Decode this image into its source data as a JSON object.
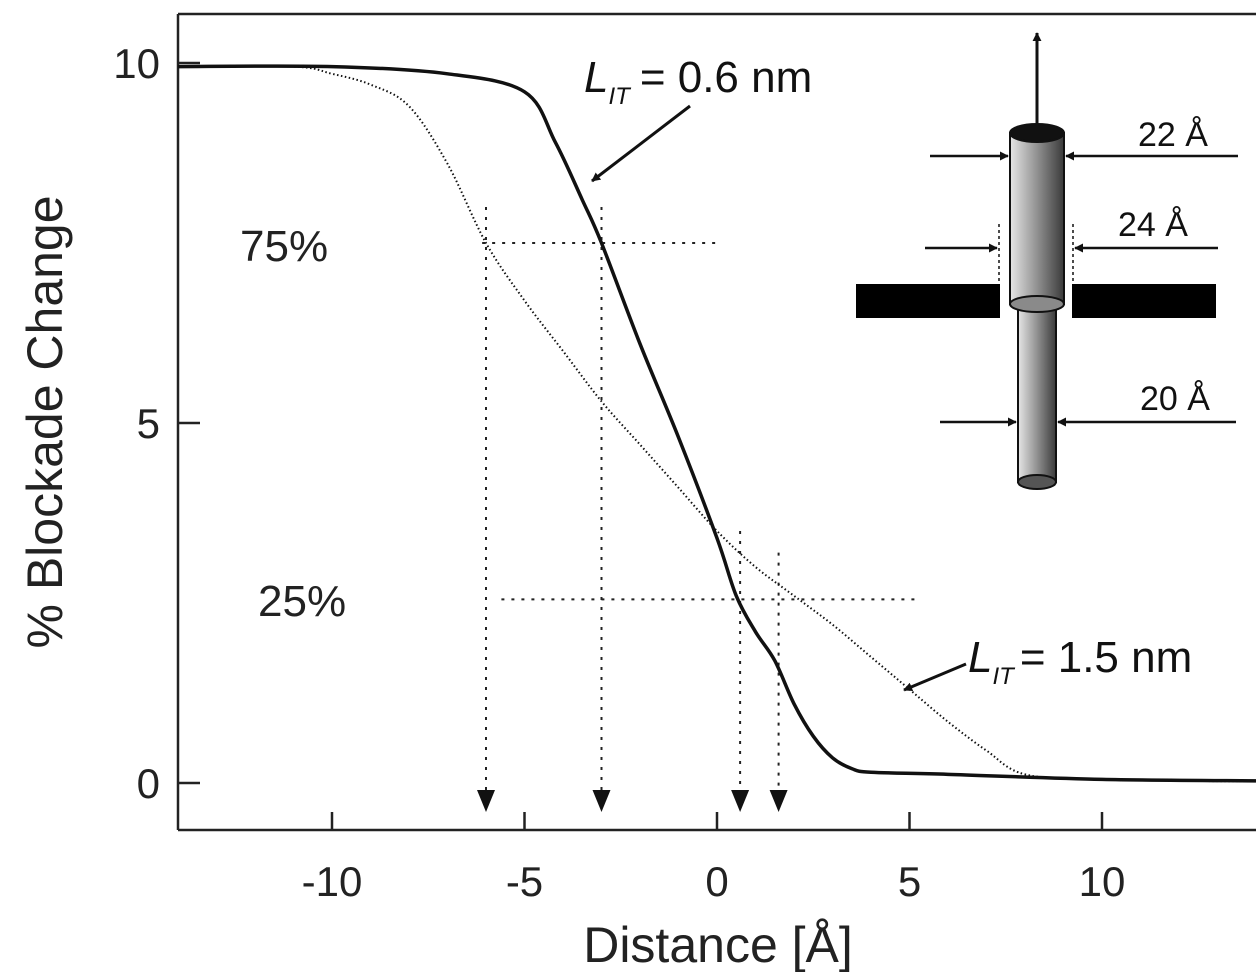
{
  "chart_data": {
    "type": "line",
    "xlabel": "Distance [Å]",
    "ylabel": "% Blockade Change",
    "xlim": [
      -14,
      14
    ],
    "ylim": [
      -0.65,
      10.7
    ],
    "x_ticks": [
      -10,
      -5,
      0,
      5,
      10
    ],
    "x_tick_labels": [
      "-10",
      "-5",
      "0",
      "5",
      "10"
    ],
    "y_ticks": [
      0,
      5,
      10
    ],
    "y_tick_labels": [
      "0",
      "5",
      "10"
    ],
    "grid": false,
    "series": [
      {
        "style": "solid",
        "x": [
          -14,
          -10,
          -7,
          -5,
          -4.2,
          -3.5,
          -3,
          -2,
          -1,
          0,
          0.5,
          1,
          1.5,
          2,
          2.5,
          3,
          3.5,
          4,
          6,
          10,
          14
        ],
        "y": [
          9.95,
          9.95,
          9.85,
          9.6,
          8.9,
          8.1,
          7.5,
          6.1,
          4.8,
          3.4,
          2.6,
          2.1,
          1.7,
          1.1,
          0.65,
          0.35,
          0.2,
          0.15,
          0.12,
          0.05,
          0.03
        ]
      },
      {
        "style": "dotted",
        "x": [
          -14,
          -11,
          -10,
          -9,
          -8,
          -7,
          -6,
          -5,
          -4,
          -3,
          -2,
          -1,
          0,
          1,
          2,
          3,
          4,
          5,
          6,
          7,
          8,
          10,
          14
        ],
        "y": [
          9.95,
          9.95,
          9.85,
          9.7,
          9.4,
          8.6,
          7.5,
          6.7,
          6.0,
          5.3,
          4.7,
          4.1,
          3.5,
          3.0,
          2.6,
          2.2,
          1.75,
          1.3,
          0.85,
          0.45,
          0.12,
          0.05,
          0.02
        ]
      }
    ],
    "reference_lines": {
      "horizontal": [
        {
          "label": "75%",
          "y": 7.5,
          "x_range": [
            -6.1,
            0
          ]
        },
        {
          "label": "25%",
          "y": 2.55,
          "x_range": [
            -5.6,
            5.2
          ]
        }
      ],
      "vertical_arrows": [
        {
          "x": -6.0,
          "from_y": 8.0
        },
        {
          "x": -3.0,
          "from_y": 8.0
        },
        {
          "x": 0.6,
          "from_y": 3.5
        },
        {
          "x": 1.6,
          "from_y": 3.2
        }
      ]
    },
    "annotations": [
      {
        "main": "L",
        "sub": "IT",
        "value": "= 0.6 nm"
      },
      {
        "main": "L",
        "sub": "IT",
        "value": "= 1.5 nm"
      }
    ],
    "inset": {
      "dimensions": [
        "22 Å",
        "24 Å",
        "20 Å"
      ]
    }
  }
}
